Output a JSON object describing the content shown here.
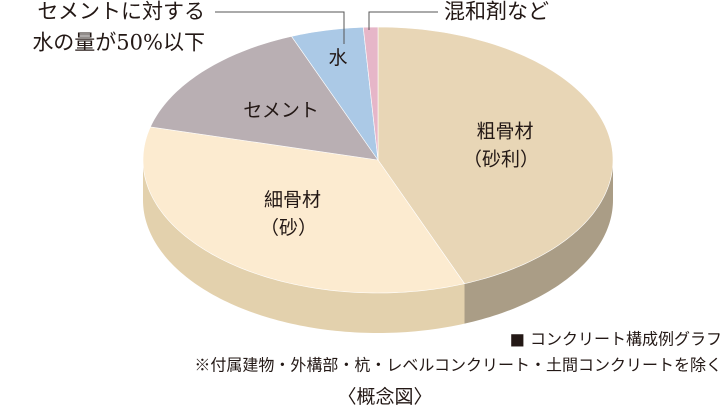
{
  "chart_data": {
    "type": "pie3d",
    "categories": [
      "粗骨材",
      "細骨材",
      "セメント",
      "水",
      null
    ],
    "category_notes": [
      "（砂利）",
      "（砂）",
      null,
      null,
      null
    ],
    "values": [
      44,
      35,
      15,
      5,
      1
    ],
    "colors": [
      "#e8d6b6",
      "#fcebd0",
      "#b9afb3",
      "#abc9e6",
      "#e6b6c8"
    ],
    "side_colors": [
      "#aa9d86",
      "#e3d1ad",
      "#8f878a",
      "#8aa6c0",
      "#c195a6"
    ],
    "annotation": [
      "セメントに対する",
      "水の量が50%以下"
    ],
    "admixture_label": "混和剤など",
    "legend": "■ コンクリート構成例グラフ",
    "note": "※付属建物・外構部・杭・レベルコンクリート・土間コンクリートを除く",
    "caption": "〈概念図〉"
  }
}
